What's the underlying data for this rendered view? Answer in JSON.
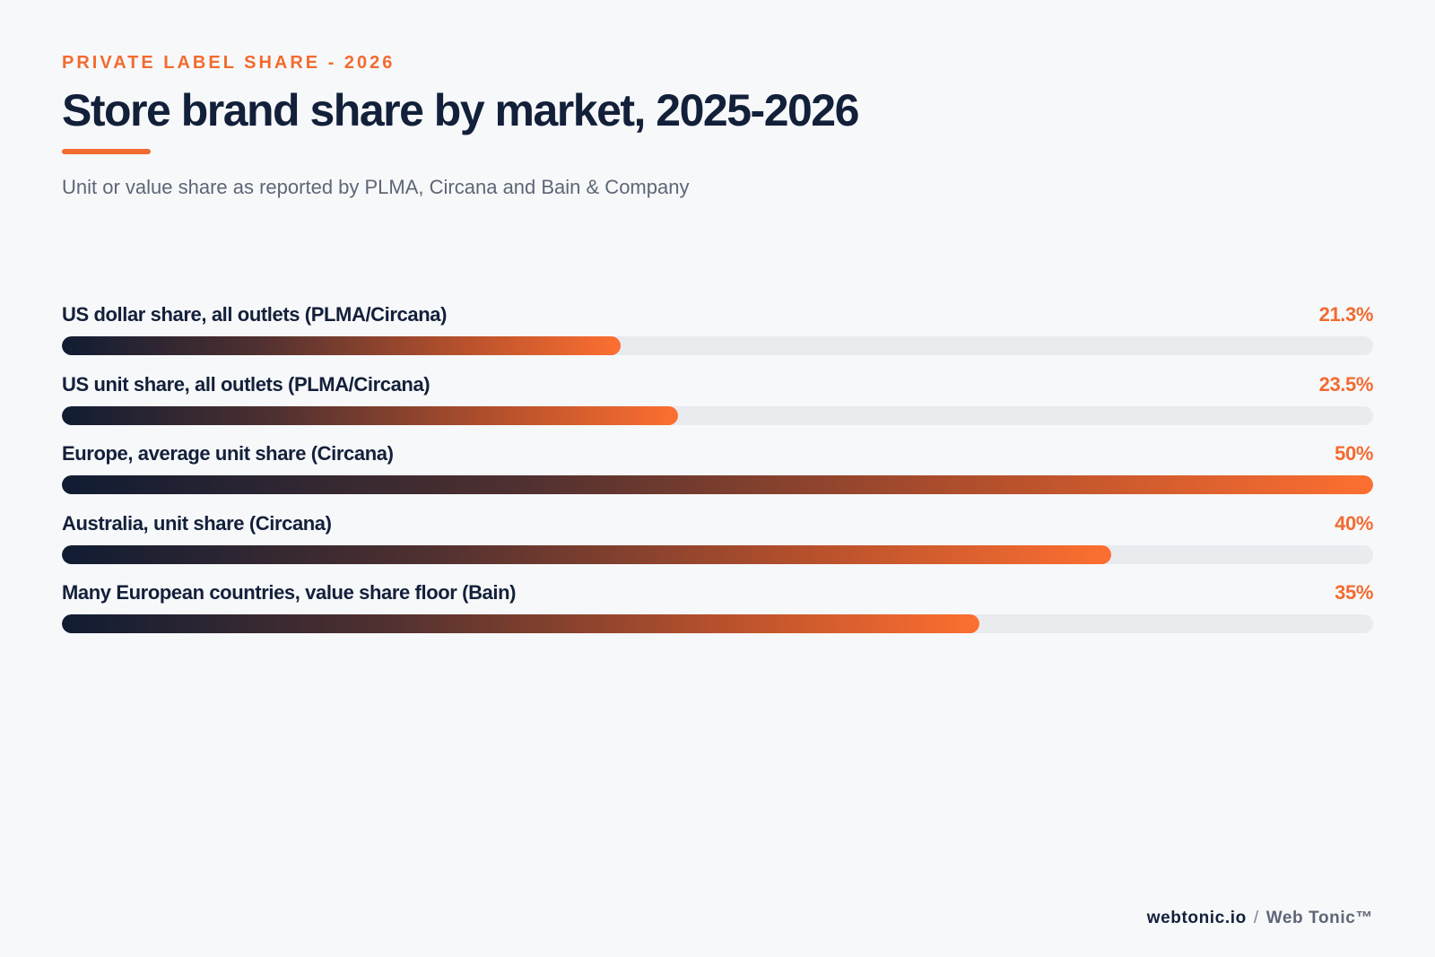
{
  "header": {
    "eyebrow": "PRIVATE LABEL SHARE - 2026",
    "title": "Store brand share by market, 2025-2026",
    "subtitle": "Unit or value share as reported by PLMA, Circana and Bain & Company"
  },
  "chart_data": {
    "type": "bar",
    "orientation": "horizontal",
    "title": "Store brand share by market, 2025-2026",
    "subtitle": "Unit or value share as reported by PLMA, Circana and Bain & Company",
    "categories": [
      "US dollar share, all outlets (PLMA/Circana)",
      "US unit share, all outlets (PLMA/Circana)",
      "Europe, average unit share (Circana)",
      "Australia, unit share (Circana)",
      "Many European countries, value share floor (Bain)"
    ],
    "values": [
      21.3,
      23.5,
      50,
      40,
      35
    ],
    "value_labels": [
      "21.3%",
      "23.5%",
      "50%",
      "40%",
      "35%"
    ],
    "xlim": [
      0,
      50
    ],
    "unit": "%",
    "grid": false,
    "legend": "none",
    "colors": {
      "gradient_start": "#101c33",
      "gradient_end": "#fd6f31",
      "track": "#e9ebef",
      "accent": "#f26b30"
    }
  },
  "footer": {
    "site": "webtonic.io",
    "separator": "/",
    "brand": "Web Tonic™"
  }
}
